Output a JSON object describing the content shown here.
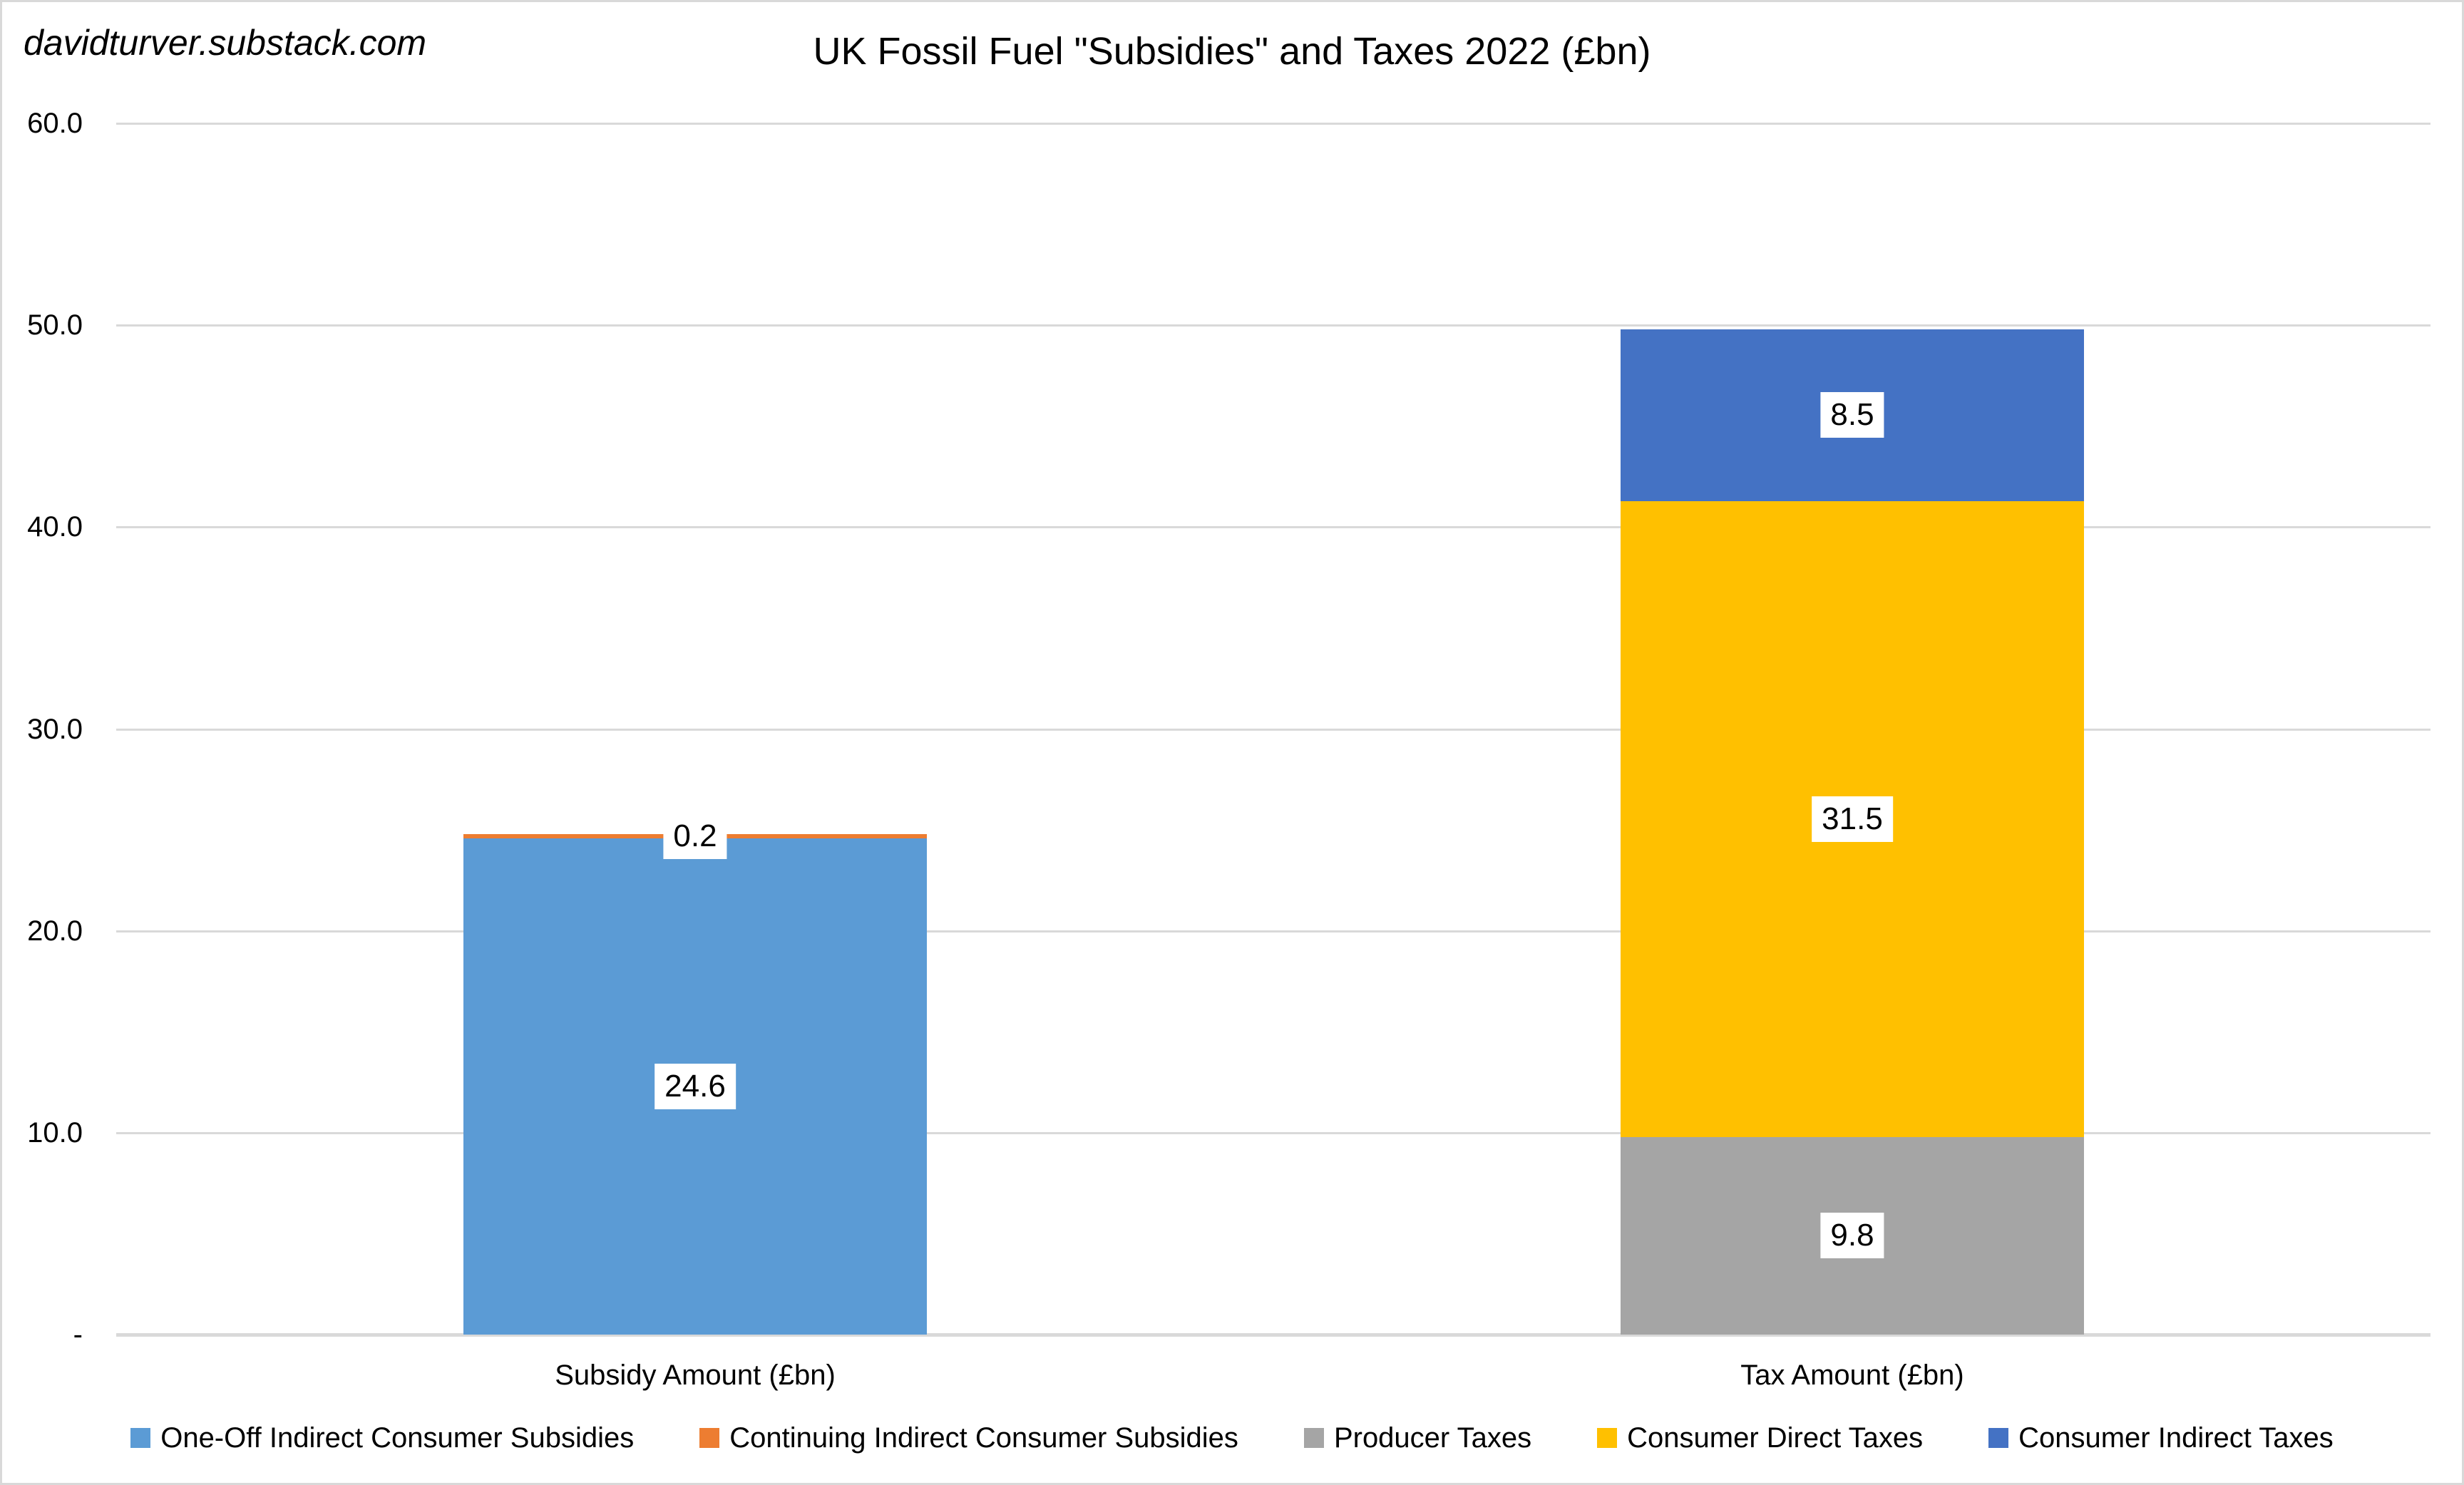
{
  "watermark": "davidturver.substack.com",
  "title": "UK Fossil Fuel \"Subsidies\" and Taxes 2022 (£bn)",
  "y_axis": {
    "tick_labels": [
      "60.0",
      "50.0",
      "40.0",
      "30.0",
      "20.0",
      "10.0",
      "-"
    ],
    "tick_values": [
      60,
      50,
      40,
      30,
      20,
      10,
      0
    ]
  },
  "chart_data": {
    "type": "bar",
    "stacked": true,
    "title": "UK Fossil Fuel \"Subsidies\" and Taxes 2022 (£bn)",
    "categories": [
      "Subsidy Amount (£bn)",
      "Tax Amount (£bn)"
    ],
    "series": [
      {
        "name": "One-Off Indirect Consumer Subsidies",
        "color": "#5B9BD5",
        "values": [
          24.6,
          0
        ]
      },
      {
        "name": "Continuing Indirect Consumer Subsidies",
        "color": "#ED7D31",
        "values": [
          0.2,
          0
        ]
      },
      {
        "name": "Producer Taxes",
        "color": "#A5A5A5",
        "values": [
          0,
          9.8
        ]
      },
      {
        "name": "Consumer Direct Taxes",
        "color": "#FFC000",
        "values": [
          0,
          31.5
        ]
      },
      {
        "name": "Consumer Indirect Taxes",
        "color": "#4472C4",
        "values": [
          0,
          8.5
        ]
      }
    ],
    "totals": [
      24.8,
      49.8
    ],
    "ylim": [
      0,
      60
    ],
    "gridline_step": 10,
    "grid": true,
    "legend_position": "bottom",
    "data_label_style": {
      "background": "#FFFFFF",
      "text": "#000000"
    }
  },
  "colors": {
    "gridline": "#D9D9D9",
    "axis_line": "#D9D9D9",
    "frame_border": "#D9D9D9",
    "background": "#FFFFFF",
    "text": "#000000"
  }
}
